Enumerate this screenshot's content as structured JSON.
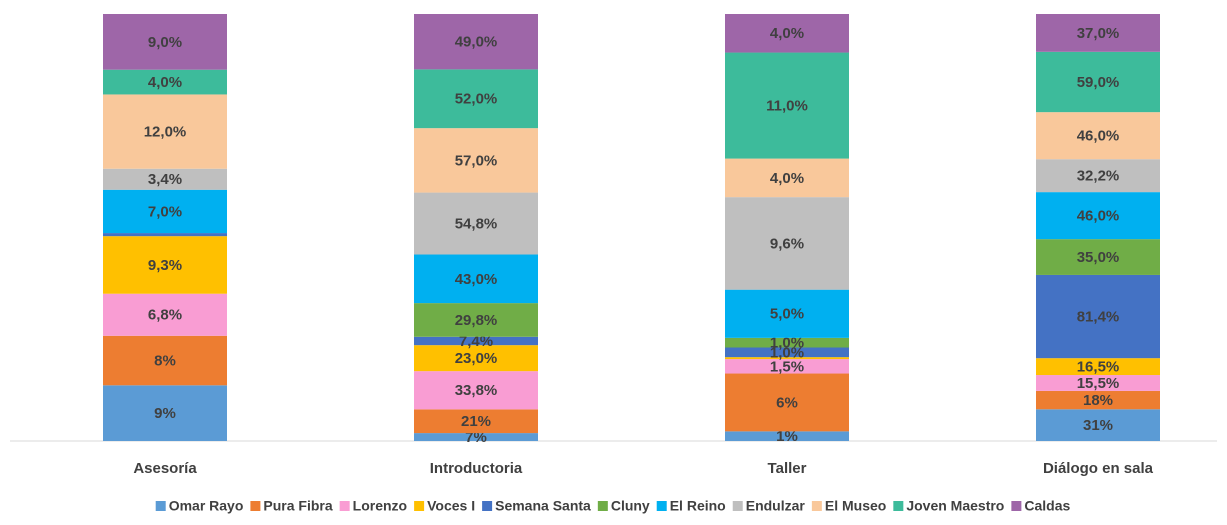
{
  "chart_data": {
    "type": "bar",
    "stacking": "percent",
    "categories": [
      "Asesoría",
      "Introductoria",
      "Taller",
      "Diálogo en sala"
    ],
    "series": [
      {
        "name": "Omar Rayo",
        "color": "#5b9bd5",
        "values": [
          9,
          7,
          1,
          31
        ],
        "value_labels": [
          "9%",
          "7%",
          "1%",
          "31%"
        ]
      },
      {
        "name": "Pura Fibra",
        "color": "#ed7d31",
        "values": [
          8,
          21,
          6,
          18
        ],
        "value_labels": [
          "8%",
          "21%",
          "6%",
          "18%"
        ]
      },
      {
        "name": "Lorenzo",
        "color": "#f99dd3",
        "values": [
          6.8,
          33.8,
          1.5,
          15.5
        ],
        "value_labels": [
          "6,8%",
          "33,8%",
          "1,5%",
          "15,5%"
        ]
      },
      {
        "name": "Voces I",
        "color": "#ffc000",
        "values": [
          9.3,
          23,
          0.2,
          16.5
        ],
        "value_labels": [
          "9,3%",
          "23,0%",
          null,
          "16,5%"
        ]
      },
      {
        "name": "Semana Santa",
        "color": "#4472c4",
        "values": [
          0.5,
          7.4,
          1.0,
          81.4
        ],
        "value_labels": [
          null,
          "7,4%",
          "1,0%",
          "81,4%"
        ]
      },
      {
        "name": "Cluny",
        "color": "#70ad47",
        "values": [
          null,
          29.8,
          1.0,
          35
        ],
        "value_labels": [
          null,
          "29,8%",
          "1,0%",
          "35,0%"
        ]
      },
      {
        "name": "El Reino",
        "color": "#00b0f0",
        "values": [
          7,
          43,
          5,
          46
        ],
        "value_labels": [
          "7,0%",
          "43,0%",
          "5,0%",
          "46,0%"
        ]
      },
      {
        "name": "Endulzar",
        "color": "#bfbfbf",
        "values": [
          3.4,
          54.8,
          9.6,
          32.2
        ],
        "value_labels": [
          "3,4%",
          "54,8%",
          "9,6%",
          "32,2%"
        ]
      },
      {
        "name": "El Museo",
        "color": "#f9c89b",
        "values": [
          12,
          57,
          4,
          46
        ],
        "value_labels": [
          "12,0%",
          "57,0%",
          "4,0%",
          "46,0%"
        ]
      },
      {
        "name": "Joven Maestro",
        "color": "#3dbb9b",
        "values": [
          4,
          52,
          11,
          59
        ],
        "value_labels": [
          "4,0%",
          "52,0%",
          "11,0%",
          "59,0%"
        ]
      },
      {
        "name": "Caldas",
        "color": "#9e66a8",
        "values": [
          9,
          49,
          4,
          37
        ],
        "value_labels": [
          "9,0%",
          "49,0%",
          "4,0%",
          "37,0%"
        ]
      }
    ]
  }
}
